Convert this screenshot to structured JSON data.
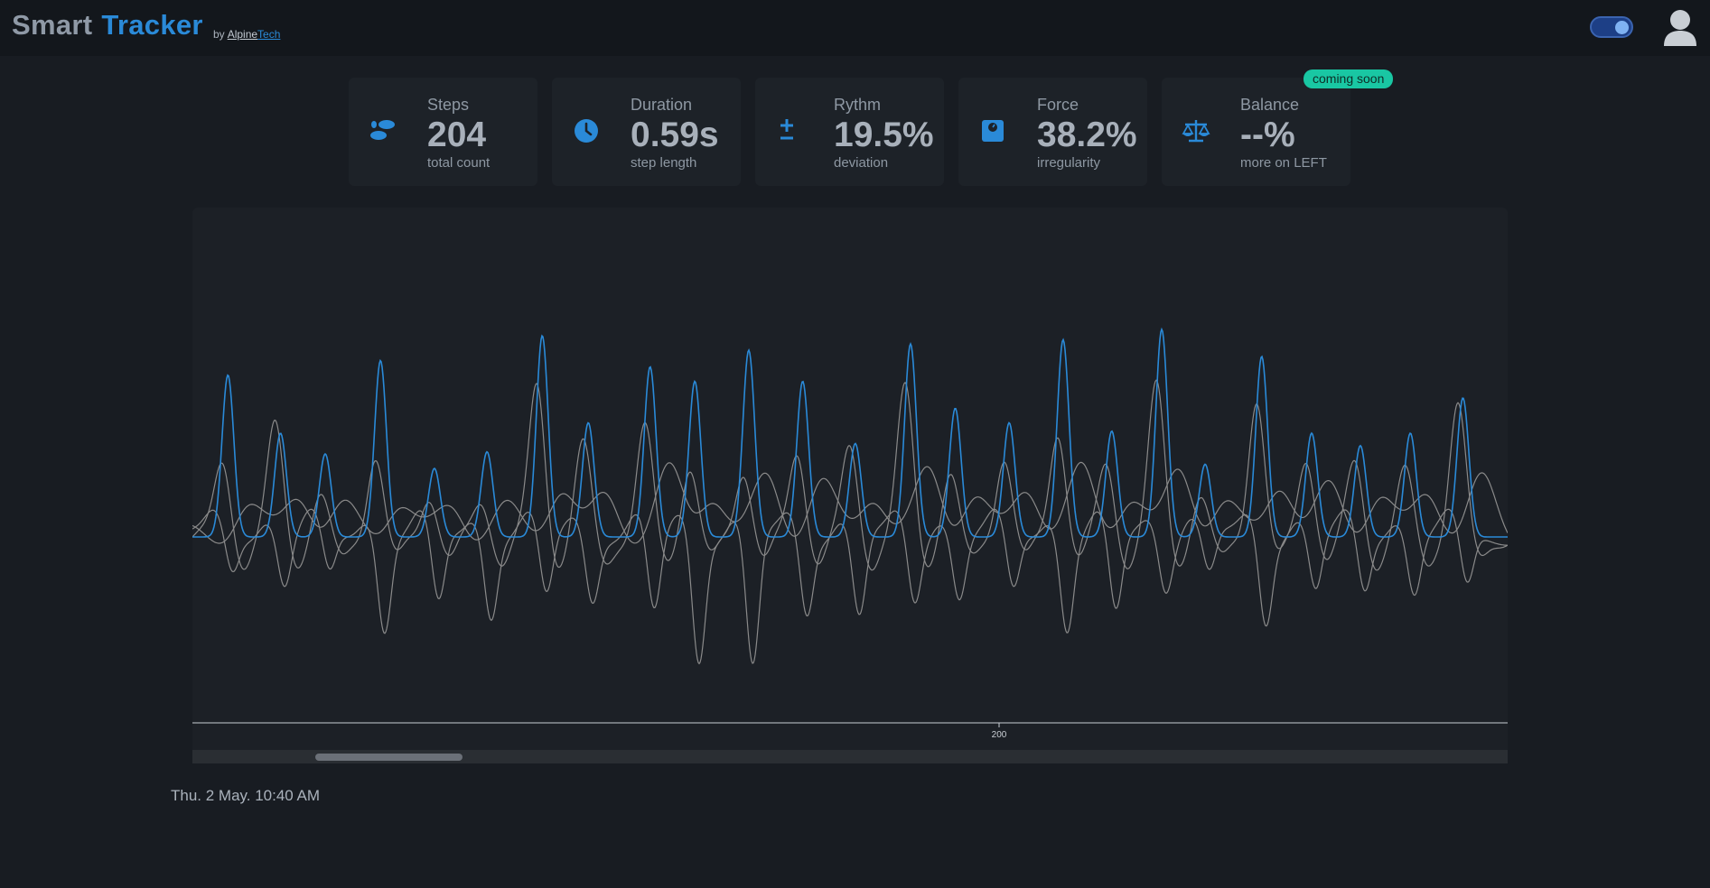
{
  "app": {
    "title_part1": "Smart",
    "title_part2": "Tracker",
    "by_label": "by",
    "vendor_part1": "Alpine",
    "vendor_part2": "Tech",
    "theme_toggle_on": true,
    "accent_color": "#2a8ad8"
  },
  "metrics": [
    {
      "label": "Steps",
      "value": "204",
      "sub": "total count",
      "icon": "footsteps-icon"
    },
    {
      "label": "Duration",
      "value": "0.59s",
      "sub": "step length",
      "icon": "clock-icon"
    },
    {
      "label": "Rythm",
      "value": "19.5%",
      "sub": "deviation",
      "icon": "plus-minus-icon"
    },
    {
      "label": "Force",
      "value": "38.2%",
      "sub": "irregularity",
      "icon": "scale-weight-icon"
    },
    {
      "label": "Balance",
      "value": "--%",
      "sub": "more on LEFT",
      "icon": "balance-scale-icon",
      "badge": "coming soon"
    }
  ],
  "chart_data": {
    "type": "line",
    "series": [
      {
        "color": "#2a8ad8"
      },
      {
        "color": "#8a8a8a"
      },
      {
        "color": "#8a8a8a"
      },
      {
        "color": "#8a8a8a"
      }
    ],
    "x_tick_labels": [
      "200"
    ],
    "grid": false,
    "peaks": [
      {
        "x": 0.027,
        "blue": 0.78,
        "g1": 0.35,
        "g2": -0.18,
        "g3": 0.15
      },
      {
        "x": 0.067,
        "blue": 0.5,
        "g1": 0.52,
        "g2": -0.25,
        "g3": 0.22
      },
      {
        "x": 0.101,
        "blue": 0.4,
        "g1": 0.2,
        "g2": -0.2,
        "g3": 0.12
      },
      {
        "x": 0.143,
        "blue": 0.85,
        "g1": 0.4,
        "g2": -0.45,
        "g3": 0.18
      },
      {
        "x": 0.184,
        "blue": 0.33,
        "g1": 0.22,
        "g2": -0.35,
        "g3": 0.15
      },
      {
        "x": 0.224,
        "blue": 0.41,
        "g1": 0.18,
        "g2": -0.38,
        "g3": 0.12
      },
      {
        "x": 0.266,
        "blue": 0.97,
        "g1": 0.73,
        "g2": -0.32,
        "g3": 0.25
      },
      {
        "x": 0.301,
        "blue": 0.55,
        "g1": 0.43,
        "g2": -0.3,
        "g3": 0.18
      },
      {
        "x": 0.348,
        "blue": 0.82,
        "g1": 0.51,
        "g2": -0.4,
        "g3": 0.3
      },
      {
        "x": 0.382,
        "blue": 0.75,
        "g1": 0.35,
        "g2": -0.6,
        "g3": 0.22
      },
      {
        "x": 0.423,
        "blue": 0.9,
        "g1": 0.34,
        "g2": -0.65,
        "g3": 0.27
      },
      {
        "x": 0.464,
        "blue": 0.75,
        "g1": 0.42,
        "g2": -0.38,
        "g3": 0.25
      },
      {
        "x": 0.504,
        "blue": 0.45,
        "g1": 0.42,
        "g2": -0.4,
        "g3": 0.22
      },
      {
        "x": 0.546,
        "blue": 0.93,
        "g1": 0.7,
        "g2": -0.33,
        "g3": 0.3
      },
      {
        "x": 0.58,
        "blue": 0.62,
        "g1": 0.3,
        "g2": -0.3,
        "g3": 0.2
      },
      {
        "x": 0.621,
        "blue": 0.55,
        "g1": 0.4,
        "g2": -0.28,
        "g3": 0.25
      },
      {
        "x": 0.662,
        "blue": 0.95,
        "g1": 0.53,
        "g2": -0.45,
        "g3": 0.3
      },
      {
        "x": 0.699,
        "blue": 0.51,
        "g1": 0.35,
        "g2": -0.4,
        "g3": 0.2
      },
      {
        "x": 0.737,
        "blue": 1.0,
        "g1": 0.71,
        "g2": -0.25,
        "g3": 0.32
      },
      {
        "x": 0.77,
        "blue": 0.35,
        "g1": 0.2,
        "g2": -0.2,
        "g3": 0.15
      },
      {
        "x": 0.813,
        "blue": 0.87,
        "g1": 0.68,
        "g2": -0.42,
        "g3": 0.28
      },
      {
        "x": 0.851,
        "blue": 0.5,
        "g1": 0.4,
        "g2": -0.28,
        "g3": 0.22
      },
      {
        "x": 0.888,
        "blue": 0.44,
        "g1": 0.35,
        "g2": -0.28,
        "g3": 0.2
      },
      {
        "x": 0.926,
        "blue": 0.5,
        "g1": 0.3,
        "g2": -0.28,
        "g3": 0.22
      },
      {
        "x": 0.966,
        "blue": 0.67,
        "g1": 0.63,
        "g2": -0.26,
        "g3": 0.25
      }
    ]
  },
  "status": {
    "timestamp": "Thu. 2 May. 10:40 AM"
  }
}
